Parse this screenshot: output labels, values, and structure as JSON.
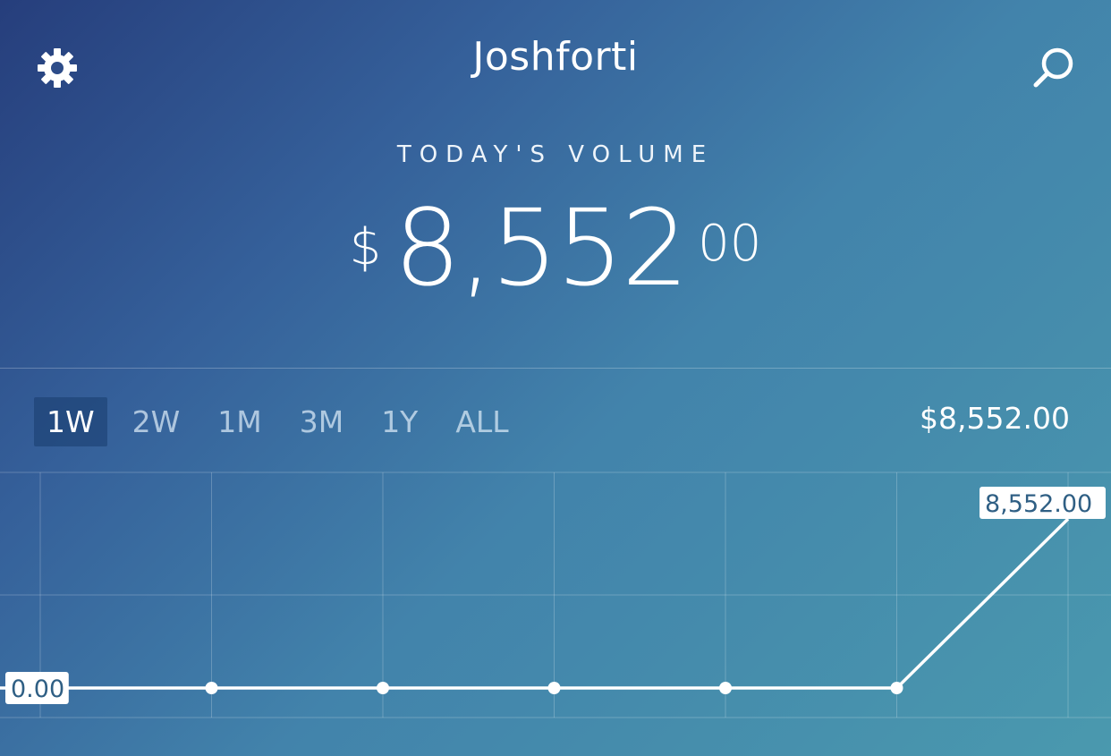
{
  "header": {
    "title": "Joshforti",
    "settings_icon": "gear-icon",
    "search_icon": "search-icon"
  },
  "summary": {
    "label": "TODAY'S VOLUME",
    "currency": "$",
    "whole": "8,552",
    "fraction": "00"
  },
  "ranges": {
    "active": "1W",
    "items": [
      {
        "label": "1W"
      },
      {
        "label": "2W"
      },
      {
        "label": "1M"
      },
      {
        "label": "3M"
      },
      {
        "label": "1Y"
      },
      {
        "label": "ALL"
      }
    ]
  },
  "current_value": "$8,552.00",
  "chart_data": {
    "type": "line",
    "series": [
      {
        "values": [
          0,
          0,
          0,
          0,
          0,
          0,
          8552
        ]
      }
    ],
    "ylim": [
      0,
      8552
    ],
    "grid": true,
    "annotations": [
      {
        "index": 0,
        "text": "0.00"
      },
      {
        "index": 6,
        "text": "8,552.00"
      }
    ]
  },
  "colors": {
    "gradient_start": "#263e7c",
    "gradient_end": "#4a99ae",
    "active_range_bg": "#183c6e",
    "label_text": "#2f5f84"
  }
}
